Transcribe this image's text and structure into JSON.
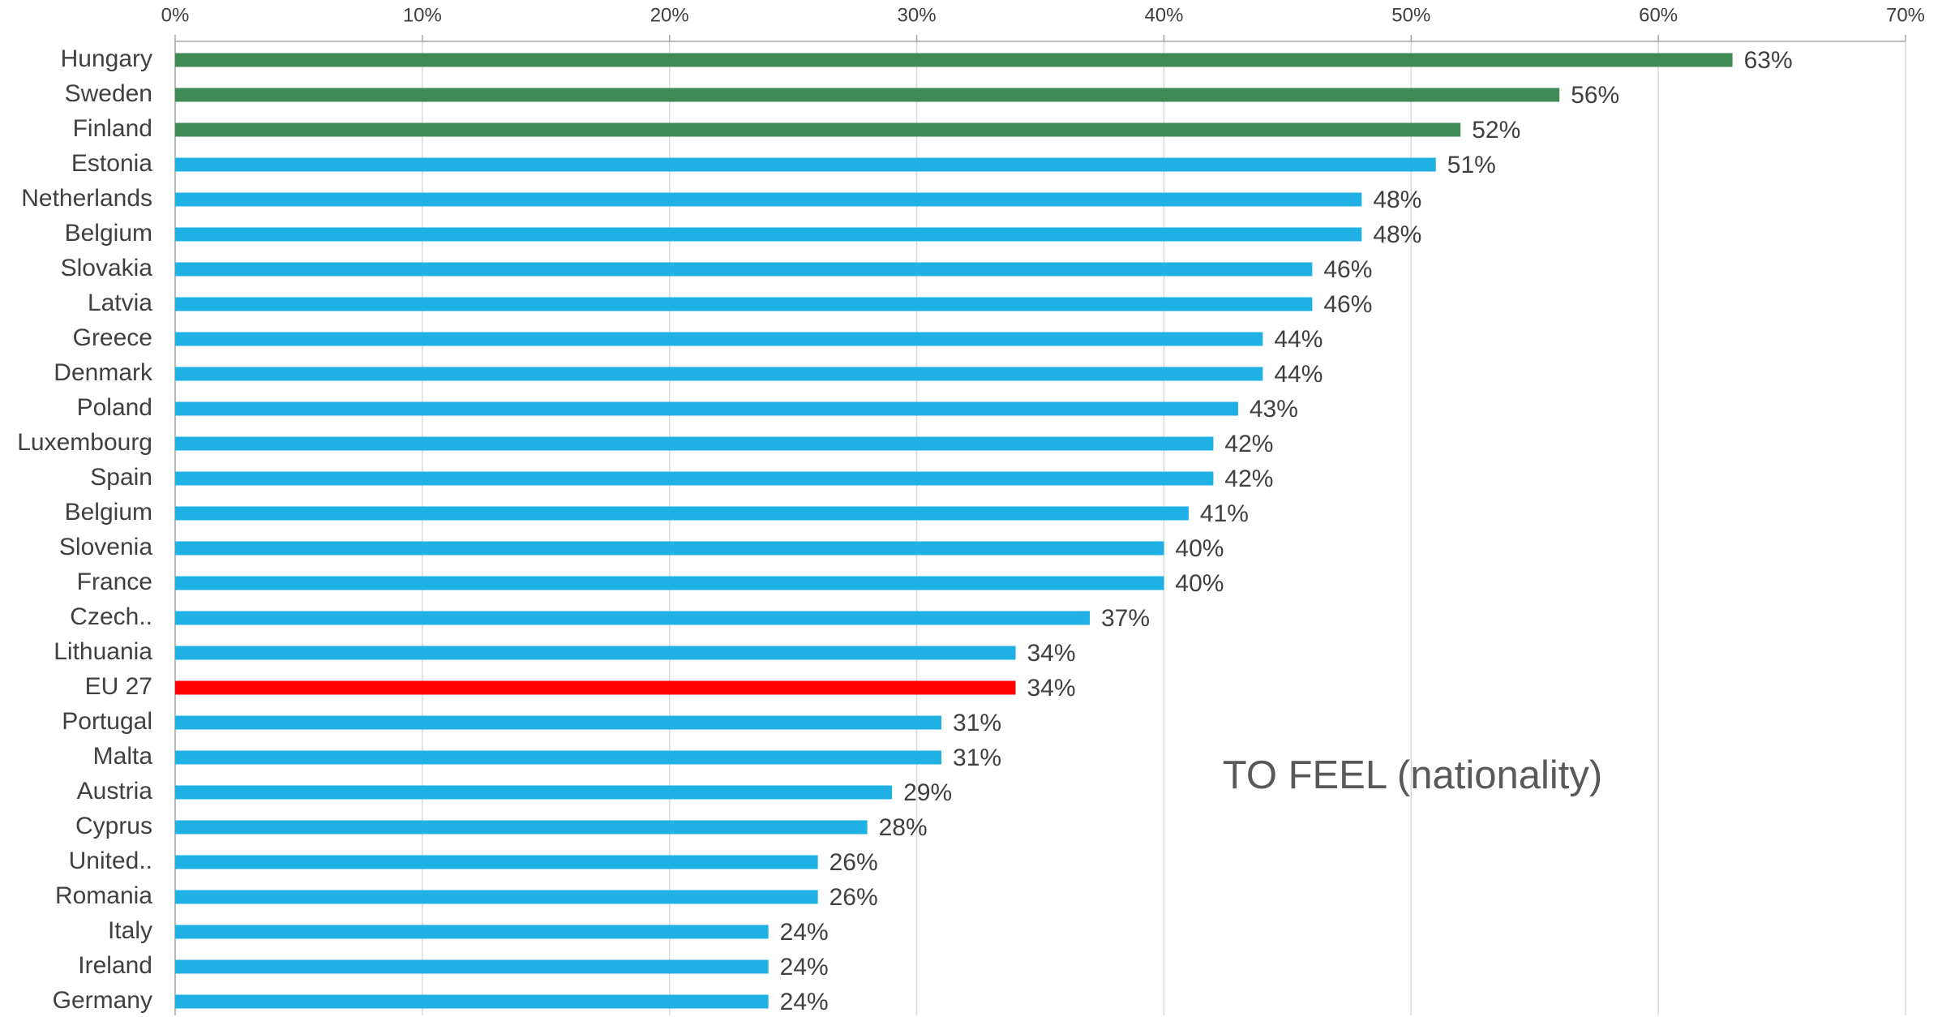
{
  "chart_data": {
    "type": "bar",
    "orientation": "horizontal",
    "annotation": "TO FEEL (nationality)",
    "categories": [
      "Hungary",
      "Sweden",
      "Finland",
      "Estonia",
      "Netherlands",
      "Belgium",
      "Slovakia",
      "Latvia",
      "Greece",
      "Denmark",
      "Poland",
      "Luxembourg",
      "Spain",
      "Belgium",
      "Slovenia",
      "France",
      "Czech..",
      "Lithuania",
      "EU 27",
      "Portugal",
      "Malta",
      "Austria",
      "Cyprus",
      "United..",
      "Romania",
      "Italy",
      "Ireland",
      "Germany"
    ],
    "values": [
      63,
      56,
      52,
      51,
      48,
      48,
      46,
      46,
      44,
      44,
      43,
      42,
      42,
      41,
      40,
      40,
      37,
      34,
      34,
      31,
      31,
      29,
      28,
      26,
      26,
      24,
      24,
      24
    ],
    "value_labels": [
      "63%",
      "56%",
      "52%",
      "51%",
      "48%",
      "48%",
      "46%",
      "46%",
      "44%",
      "44%",
      "43%",
      "42%",
      "42%",
      "41%",
      "40%",
      "40%",
      "37%",
      "34%",
      "34%",
      "31%",
      "31%",
      "29%",
      "28%",
      "26%",
      "26%",
      "24%",
      "24%",
      "24%"
    ],
    "colors": [
      "#3f8a55",
      "#3f8a55",
      "#3f8a55",
      "#1fb0e4",
      "#1fb0e4",
      "#1fb0e4",
      "#1fb0e4",
      "#1fb0e4",
      "#1fb0e4",
      "#1fb0e4",
      "#1fb0e4",
      "#1fb0e4",
      "#1fb0e4",
      "#1fb0e4",
      "#1fb0e4",
      "#1fb0e4",
      "#1fb0e4",
      "#1fb0e4",
      "#ff0000",
      "#1fb0e4",
      "#1fb0e4",
      "#1fb0e4",
      "#1fb0e4",
      "#1fb0e4",
      "#1fb0e4",
      "#1fb0e4",
      "#1fb0e4",
      "#1fb0e4"
    ],
    "xlim": [
      0,
      70
    ],
    "xticks": [
      {
        "value": 0,
        "label": "0%"
      },
      {
        "value": 10,
        "label": "10%"
      },
      {
        "value": 20,
        "label": "20%"
      },
      {
        "value": 30,
        "label": "30%"
      },
      {
        "value": 40,
        "label": "40%"
      },
      {
        "value": 50,
        "label": "50%"
      },
      {
        "value": 60,
        "label": "60%"
      },
      {
        "value": 70,
        "label": "70%"
      }
    ],
    "grid": true
  }
}
